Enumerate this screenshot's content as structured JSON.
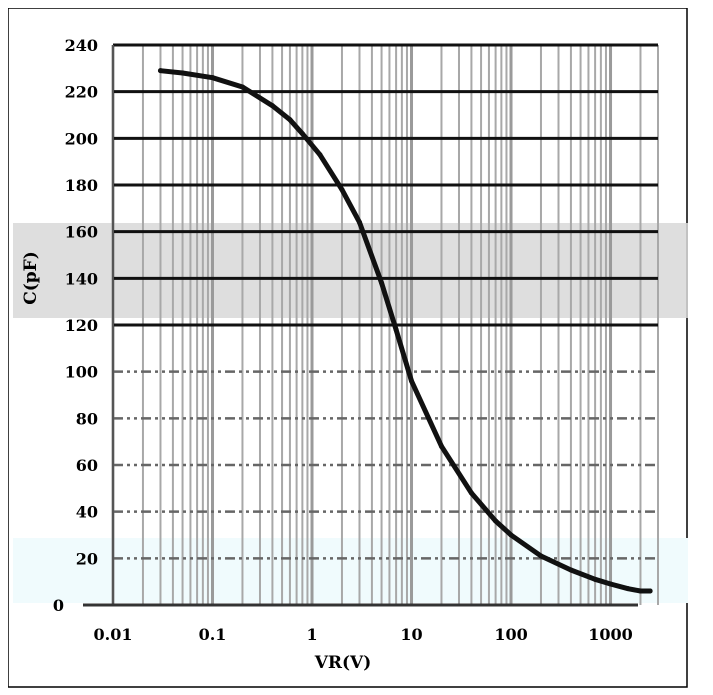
{
  "chart_data": {
    "type": "line",
    "xlabel": "VR(V)",
    "ylabel": "C(pF)",
    "x_scale": "log",
    "xlim": [
      0.01,
      3000
    ],
    "ylim": [
      0,
      240
    ],
    "x_ticks": [
      "0.01",
      "0.1",
      "1",
      "10",
      "100",
      "1000"
    ],
    "y_ticks": [
      "0",
      "20",
      "40",
      "60",
      "80",
      "100",
      "120",
      "140",
      "160",
      "180",
      "200",
      "220",
      "240"
    ],
    "grid": true,
    "series": [
      {
        "x": [
          0.03,
          0.05,
          0.1,
          0.2,
          0.4,
          0.6,
          0.8,
          1.2,
          2,
          3,
          5,
          7,
          10,
          20,
          40,
          70,
          100,
          200,
          400,
          700,
          1000,
          1500,
          2000,
          2500
        ],
        "y": [
          229,
          228,
          226,
          222,
          214,
          208,
          202,
          193,
          178,
          164,
          138,
          118,
          96,
          68,
          48,
          36,
          30,
          21,
          15,
          11,
          9,
          7,
          6,
          6
        ]
      }
    ]
  }
}
